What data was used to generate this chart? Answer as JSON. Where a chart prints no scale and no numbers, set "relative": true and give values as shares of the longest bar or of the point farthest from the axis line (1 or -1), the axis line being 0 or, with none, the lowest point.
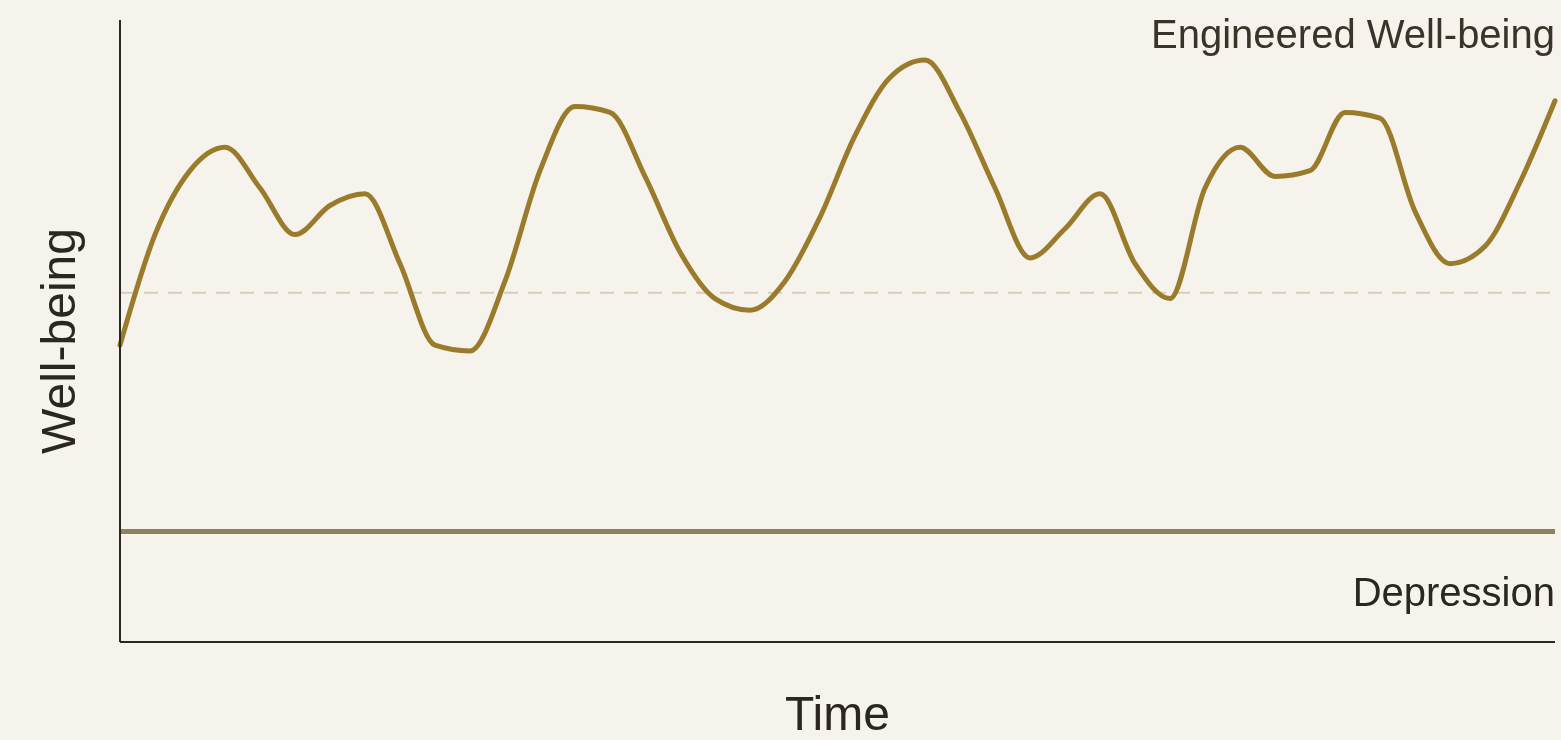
{
  "chart_data": {
    "type": "line",
    "relative": true,
    "xlabel": "Time",
    "ylabel": "Well-being",
    "categories": [
      null,
      null,
      null,
      null,
      null,
      null,
      null,
      null,
      null,
      null,
      null,
      null,
      null,
      null,
      null,
      null,
      null,
      null,
      null,
      null,
      null,
      null,
      null,
      null,
      null,
      null,
      null,
      null,
      null,
      null,
      null,
      null,
      null,
      null,
      null,
      null,
      null,
      null,
      null,
      null,
      null,
      null
    ],
    "series": [
      {
        "name": "Engineered Well-being",
        "color": "#9a7b2c",
        "values": [
          0.51,
          0.7,
          0.81,
          0.85,
          0.78,
          0.7,
          0.75,
          0.77,
          0.65,
          0.51,
          0.5,
          0.62,
          0.81,
          0.92,
          0.91,
          0.8,
          0.67,
          0.59,
          0.57,
          0.62,
          0.73,
          0.87,
          0.97,
          1,
          0.91,
          0.78,
          0.66,
          0.71,
          0.77,
          0.65,
          0.59,
          0.78,
          0.85,
          0.8,
          0.81,
          0.91,
          0.9,
          0.74,
          0.65,
          0.68,
          0.79,
          0.93
        ]
      }
    ],
    "ref_lines": [
      {
        "axis": "y",
        "value": 0.19,
        "label": "Depression",
        "color": "#8f8060",
        "line_style": "solid"
      },
      {
        "axis": "y",
        "value": 0.6,
        "label": null,
        "color": "#d9cfb8",
        "line_style": "dashed"
      }
    ]
  }
}
